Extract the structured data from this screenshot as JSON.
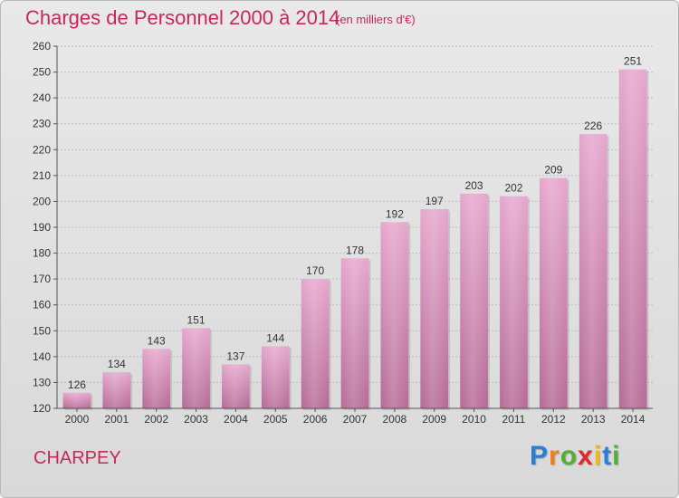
{
  "title": "Charges de Personnel 2000 à 2014",
  "subtitle": "(en milliers d'€)",
  "commune": "CHARPEY",
  "logo": {
    "letters": [
      "P",
      "r",
      "o",
      "x",
      "i",
      "t",
      "i"
    ],
    "colors": [
      "#2a7fd4",
      "#f07f1a",
      "#52b030",
      "#e3282d",
      "#f2b81a",
      "#2a7fd4",
      "#52b030"
    ]
  },
  "chart_data": {
    "type": "bar",
    "title": "Charges de Personnel 2000 à 2014",
    "subtitle": "(en milliers d'€)",
    "categories": [
      "2000",
      "2001",
      "2002",
      "2003",
      "2004",
      "2005",
      "2006",
      "2007",
      "2008",
      "2009",
      "2010",
      "2011",
      "2012",
      "2013",
      "2014"
    ],
    "values": [
      126,
      134,
      143,
      151,
      137,
      144,
      170,
      178,
      192,
      197,
      203,
      202,
      209,
      226,
      251
    ],
    "xlabel": "",
    "ylabel": "",
    "ylim": [
      120,
      260
    ],
    "yticks": [
      120,
      130,
      140,
      150,
      160,
      170,
      180,
      190,
      200,
      210,
      220,
      230,
      240,
      250,
      260
    ],
    "grid": true,
    "bar_color": "#d98ab8",
    "legend": "none"
  }
}
